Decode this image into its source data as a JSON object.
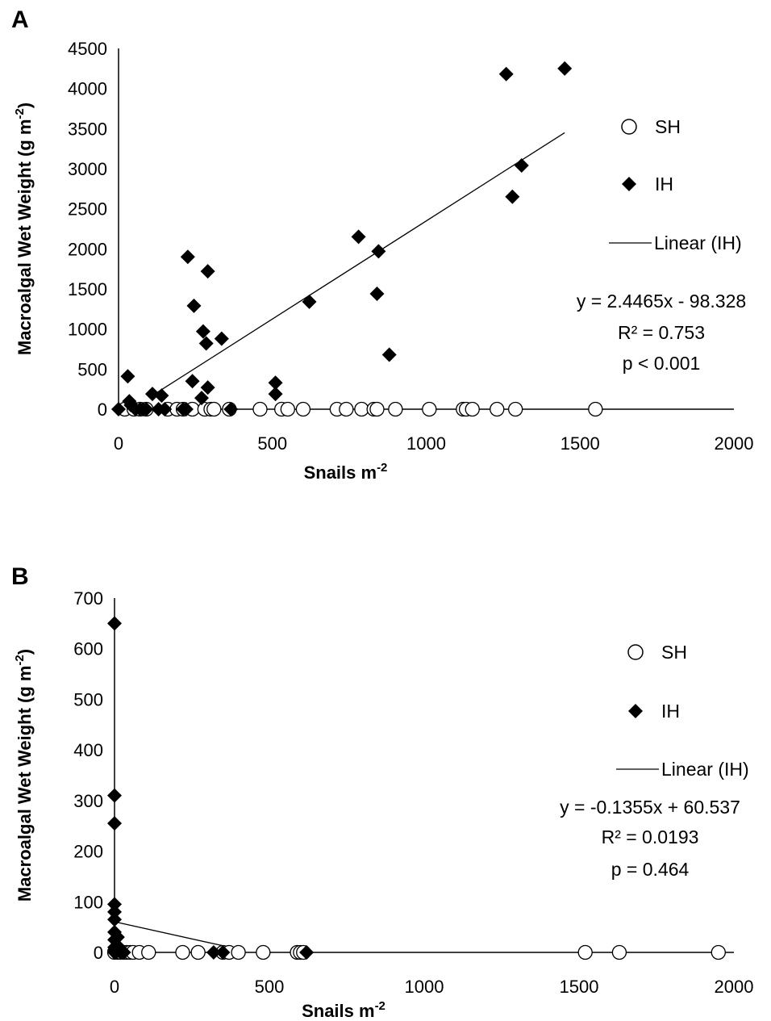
{
  "chart_data": [
    {
      "type": "scatter",
      "panel_label": "A",
      "xlabel": "Snails m",
      "xlabel_sup": "-2",
      "ylabel": "Macroalgal Wet Weight (g m",
      "ylabel_sup": "-2",
      "ylabel_tail": ")",
      "xlim": [
        0,
        2000
      ],
      "ylim": [
        0,
        4500
      ],
      "xticks": [
        0,
        500,
        1000,
        1500,
        2000
      ],
      "yticks": [
        0,
        500,
        1000,
        1500,
        2000,
        2500,
        3000,
        3500,
        4000,
        4500
      ],
      "grid": false,
      "legend_position": "right",
      "series": [
        {
          "name": "SH",
          "marker": "open-circle",
          "x": [
            20,
            50,
            70,
            90,
            160,
            190,
            210,
            240,
            280,
            300,
            310,
            360,
            460,
            530,
            550,
            600,
            710,
            740,
            790,
            830,
            840,
            900,
            1010,
            1120,
            1130,
            1150,
            1230,
            1290,
            1550
          ],
          "y": [
            0,
            0,
            0,
            0,
            0,
            0,
            0,
            0,
            0,
            0,
            0,
            0,
            0,
            0,
            0,
            0,
            0,
            0,
            0,
            0,
            0,
            0,
            0,
            0,
            0,
            0,
            0,
            0,
            0
          ]
        },
        {
          "name": "IH",
          "marker": "filled-diamond",
          "x": [
            0,
            30,
            35,
            40,
            55,
            70,
            80,
            90,
            110,
            130,
            140,
            150,
            210,
            220,
            225,
            240,
            245,
            270,
            275,
            285,
            290,
            290,
            335,
            365,
            510,
            510,
            620,
            780,
            840,
            845,
            880,
            1260,
            1280,
            1310,
            1450
          ],
          "y": [
            0,
            410,
            100,
            50,
            0,
            0,
            0,
            0,
            190,
            0,
            170,
            0,
            0,
            0,
            1900,
            350,
            1290,
            140,
            970,
            820,
            270,
            1720,
            880,
            0,
            330,
            190,
            1340,
            2150,
            1440,
            1970,
            680,
            4180,
            2650,
            3040,
            4250
          ]
        }
      ],
      "trendline": {
        "name": "Linear (IH)",
        "x": [
          120,
          1450
        ],
        "y": [
          195.25,
          3449.1
        ]
      },
      "legend": [
        "SH",
        "IH",
        "Linear (IH)"
      ],
      "annotations": [
        "y = 2.4465x - 98.328",
        "R² = 0.753",
        "p < 0.001"
      ]
    },
    {
      "type": "scatter",
      "panel_label": "B",
      "xlabel": "Snails m",
      "xlabel_sup": "-2",
      "ylabel": "Macroalgal Wet Weight (g m",
      "ylabel_sup": "-2",
      "ylabel_tail": ")",
      "xlim": [
        0,
        2000
      ],
      "ylim": [
        0,
        700
      ],
      "xticks": [
        0,
        500,
        1000,
        1500,
        2000
      ],
      "yticks": [
        0,
        100,
        200,
        300,
        400,
        500,
        600,
        700
      ],
      "grid": false,
      "legend_position": "right",
      "series": [
        {
          "name": "SH",
          "marker": "open-circle",
          "x": [
            0,
            10,
            20,
            30,
            40,
            50,
            60,
            80,
            110,
            220,
            270,
            350,
            370,
            400,
            480,
            590,
            600,
            610,
            1520,
            1630,
            1950
          ],
          "y": [
            0,
            0,
            0,
            0,
            0,
            0,
            0,
            0,
            0,
            0,
            0,
            0,
            0,
            0,
            0,
            0,
            0,
            0,
            0,
            0,
            0
          ]
        },
        {
          "name": "IH",
          "marker": "filled-diamond",
          "x": [
            0,
            0,
            0,
            0,
            0,
            0,
            0,
            0,
            0,
            0,
            0,
            5,
            10,
            15,
            20,
            25,
            30,
            320,
            350,
            620
          ],
          "y": [
            650,
            310,
            255,
            95,
            80,
            65,
            40,
            25,
            10,
            5,
            0,
            0,
            30,
            10,
            0,
            0,
            0,
            0,
            0,
            0
          ]
        }
      ],
      "trendline": {
        "name": "Linear (IH)",
        "x": [
          0,
          350
        ],
        "y": [
          60.537,
          13.11
        ]
      },
      "legend": [
        "SH",
        "IH",
        "Linear (IH)"
      ],
      "annotations": [
        "y = -0.1355x + 60.537",
        "R² = 0.0193",
        "p = 0.464"
      ]
    }
  ]
}
